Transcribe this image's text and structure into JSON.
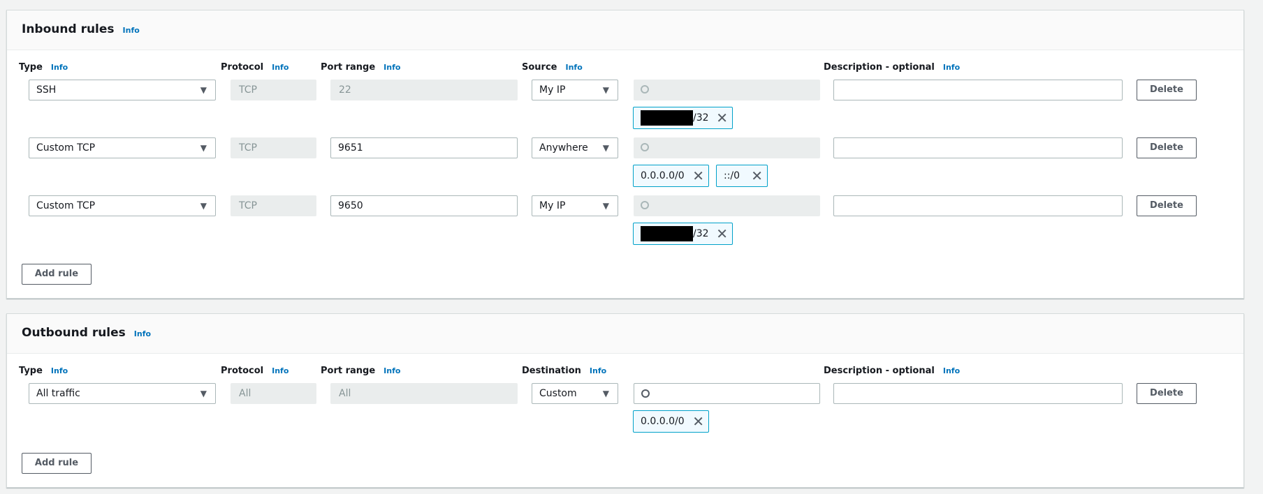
{
  "inbound": {
    "title": "Inbound rules",
    "info": "Info",
    "headers": {
      "type": "Type",
      "protocol": "Protocol",
      "port": "Port range",
      "source": "Source",
      "description": "Description - optional",
      "info": "Info"
    },
    "rules": [
      {
        "type": "SSH",
        "protocol": "TCP",
        "port": "22",
        "port_editable": false,
        "source": "My IP",
        "search_editable": false,
        "description": "",
        "delete": "Delete",
        "tokens": [
          {
            "value": "/32",
            "redacted": true
          }
        ]
      },
      {
        "type": "Custom TCP",
        "protocol": "TCP",
        "port": "9651",
        "port_editable": true,
        "source": "Anywhere",
        "search_editable": false,
        "description": "",
        "delete": "Delete",
        "tokens": [
          {
            "value": "0.0.0.0/0"
          },
          {
            "value": "::/0"
          }
        ]
      },
      {
        "type": "Custom TCP",
        "protocol": "TCP",
        "port": "9650",
        "port_editable": true,
        "source": "My IP",
        "search_editable": false,
        "description": "",
        "delete": "Delete",
        "tokens": [
          {
            "value": "/32",
            "redacted": true
          }
        ]
      }
    ],
    "add_rule": "Add rule"
  },
  "outbound": {
    "title": "Outbound rules",
    "info": "Info",
    "headers": {
      "type": "Type",
      "protocol": "Protocol",
      "port": "Port range",
      "source": "Destination",
      "description": "Description - optional",
      "info": "Info"
    },
    "rules": [
      {
        "type": "All traffic",
        "protocol": "All",
        "port": "All",
        "port_editable": false,
        "source": "Custom",
        "search_editable": true,
        "description": "",
        "delete": "Delete",
        "tokens": [
          {
            "value": "0.0.0.0/0"
          }
        ]
      }
    ],
    "add_rule": "Add rule"
  },
  "colors": {
    "info_link": "#0073bb",
    "token_border": "#00a1c9",
    "token_bg": "#f1faff"
  }
}
